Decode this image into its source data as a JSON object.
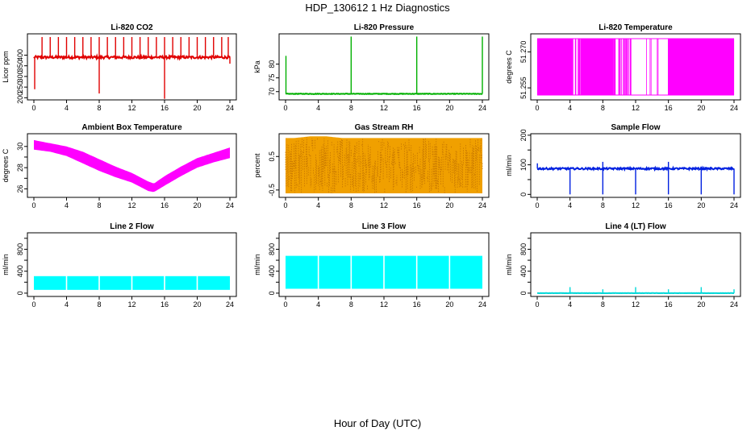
{
  "figure": {
    "title": "HDP_130612  1 Hz Diagnostics",
    "xlabel": "Hour of Day (UTC)"
  },
  "chart_data": [
    {
      "id": "co2",
      "type": "line",
      "title": "Li-820 CO2",
      "ylabel": "Licor ppm",
      "color": "#e00000",
      "xlim": [
        0,
        24
      ],
      "ylim": [
        190,
        500
      ],
      "xticks": [
        0,
        4,
        8,
        12,
        16,
        20,
        24
      ],
      "yticks": [
        200,
        250,
        300,
        350,
        400
      ],
      "pattern": "baseline_spikes",
      "baseline": 390,
      "noise": 6,
      "spikes": [
        [
          0.1,
          240
        ],
        [
          1.0,
          485
        ],
        [
          2.0,
          485
        ],
        [
          3.0,
          485
        ],
        [
          4.0,
          485
        ],
        [
          5.0,
          485
        ],
        [
          6.0,
          485
        ],
        [
          7.0,
          485
        ],
        [
          8.0,
          485
        ],
        [
          9.0,
          485
        ],
        [
          10.0,
          485
        ],
        [
          11.0,
          485
        ],
        [
          12.0,
          485
        ],
        [
          13.0,
          485
        ],
        [
          14.0,
          485
        ],
        [
          15.0,
          485
        ],
        [
          16.0,
          485
        ],
        [
          17.0,
          485
        ],
        [
          18.0,
          485
        ],
        [
          19.0,
          485
        ],
        [
          20.0,
          485
        ],
        [
          21.0,
          485
        ],
        [
          22.0,
          485
        ],
        [
          23.0,
          485
        ],
        [
          23.8,
          485
        ],
        [
          8.0,
          220
        ],
        [
          16.0,
          195
        ],
        [
          24.0,
          360
        ]
      ]
    },
    {
      "id": "pressure",
      "type": "line",
      "title": "Li-820 Pressure",
      "ylabel": "kPa",
      "color": "#00b000",
      "xlim": [
        0,
        24
      ],
      "ylim": [
        67,
        91
      ],
      "xticks": [
        0,
        4,
        8,
        12,
        16,
        20,
        24
      ],
      "yticks": [
        70,
        75,
        80
      ],
      "pattern": "baseline_spikes",
      "baseline": 69.2,
      "noise": 0.1,
      "spikes": [
        [
          0.05,
          83
        ],
        [
          8.0,
          90
        ],
        [
          16.0,
          90
        ],
        [
          24.0,
          90
        ]
      ]
    },
    {
      "id": "temp820",
      "type": "line",
      "title": "Li-820 Temperature",
      "ylabel": "degrees C",
      "color": "#ff00ff",
      "xlim": [
        0,
        24
      ],
      "ylim": [
        51.25,
        51.2775
      ],
      "xticks": [
        0,
        4,
        8,
        12,
        16,
        20,
        24
      ],
      "yticks": [
        51.255,
        51.27
      ],
      "ytick_labels": [
        "51.255",
        "51.270"
      ],
      "pattern": "two_level_toggle",
      "levels": [
        51.252,
        51.2755
      ]
    },
    {
      "id": "ambient",
      "type": "area",
      "title": "Ambient Box Temperature",
      "ylabel": "degrees C",
      "color": "#ff00ff",
      "xlim": [
        0,
        24
      ],
      "ylim": [
        25.2,
        31.2
      ],
      "xticks": [
        0,
        4,
        8,
        12,
        16,
        20,
        24
      ],
      "yticks": [
        26,
        27,
        28,
        29,
        30
      ],
      "ytick_labels": [
        "26",
        "",
        "28",
        "",
        "30"
      ],
      "pattern": "band",
      "x": [
        0,
        2,
        4,
        6,
        8,
        10,
        12,
        13,
        14,
        14.7,
        16,
        18,
        20,
        22,
        24
      ],
      "lower": [
        29.7,
        29.5,
        29.1,
        28.4,
        27.7,
        27.1,
        26.6,
        26.2,
        25.8,
        25.7,
        26.3,
        27.2,
        28.0,
        28.5,
        28.9
      ],
      "upper": [
        30.6,
        30.3,
        30.0,
        29.5,
        28.8,
        28.1,
        27.5,
        27.1,
        26.7,
        26.5,
        27.2,
        28.1,
        28.9,
        29.4,
        29.9
      ]
    },
    {
      "id": "rh",
      "type": "area",
      "title": "Gas Stream RH",
      "ylabel": "percent",
      "color": "#f0a000",
      "edge_color": "#c07000",
      "xlim": [
        0,
        24
      ],
      "ylim": [
        -0.72,
        1.18
      ],
      "xticks": [
        0,
        4,
        8,
        12,
        16,
        20,
        24
      ],
      "yticks": [
        -0.5,
        0.5
      ],
      "ytick_labels": [
        "-0.5",
        "0.5"
      ],
      "pattern": "band",
      "x": [
        0,
        1,
        3,
        5,
        7,
        9,
        11,
        13,
        15,
        17,
        19,
        21,
        23,
        24
      ],
      "lower": [
        -0.6,
        -0.6,
        -0.6,
        -0.6,
        -0.6,
        -0.6,
        -0.6,
        -0.6,
        -0.6,
        -0.6,
        -0.6,
        -0.6,
        -0.6,
        -0.6
      ],
      "upper": [
        1.05,
        1.05,
        1.1,
        1.1,
        1.05,
        1.05,
        1.05,
        1.05,
        1.05,
        1.05,
        1.05,
        1.05,
        1.05,
        1.05
      ]
    },
    {
      "id": "sampleflow",
      "type": "line",
      "title": "Sample Flow",
      "ylabel": "ml/min",
      "color": "#0020e0",
      "xlim": [
        0,
        24
      ],
      "ylim": [
        -10,
        205
      ],
      "xticks": [
        0,
        4,
        8,
        12,
        16,
        20,
        24
      ],
      "yticks": [
        0,
        50,
        100,
        150,
        200
      ],
      "ytick_labels": [
        "0",
        "",
        "100",
        "",
        "200"
      ],
      "pattern": "baseline_spikes",
      "baseline": 87,
      "noise": 3,
      "spikes": [
        [
          0.02,
          105
        ],
        [
          4.0,
          0
        ],
        [
          8.0,
          0
        ],
        [
          8.0,
          110
        ],
        [
          12.0,
          0
        ],
        [
          16.0,
          0
        ],
        [
          16.0,
          110
        ],
        [
          20.0,
          0
        ],
        [
          24.0,
          0
        ]
      ]
    },
    {
      "id": "line2",
      "type": "area",
      "title": "Line 2 Flow",
      "ylabel": "ml/min",
      "color": "#00ffff",
      "xlim": [
        0,
        24
      ],
      "ylim": [
        -60,
        1100
      ],
      "xticks": [
        0,
        4,
        8,
        12,
        16,
        20,
        24
      ],
      "yticks": [
        0,
        200,
        400,
        600,
        800,
        1000
      ],
      "ytick_labels": [
        "0",
        "",
        "400",
        "",
        "800",
        ""
      ],
      "pattern": "band_gaps",
      "lower": 60,
      "upper": 310,
      "gaps": [
        4,
        8,
        12,
        16,
        20
      ]
    },
    {
      "id": "line3",
      "type": "area",
      "title": "Line 3 Flow",
      "ylabel": "ml/min",
      "color": "#00ffff",
      "xlim": [
        0,
        24
      ],
      "ylim": [
        -60,
        1100
      ],
      "xticks": [
        0,
        4,
        8,
        12,
        16,
        20,
        24
      ],
      "yticks": [
        0,
        200,
        400,
        600,
        800,
        1000
      ],
      "ytick_labels": [
        "0",
        "",
        "400",
        "",
        "800",
        ""
      ],
      "pattern": "band_gaps",
      "lower": 80,
      "upper": 680,
      "gaps": [
        4,
        8,
        12,
        16,
        20
      ]
    },
    {
      "id": "line4",
      "type": "line",
      "title": "Line 4 (LT) Flow",
      "ylabel": "ml/min",
      "color": "#00d8d8",
      "xlim": [
        0,
        24
      ],
      "ylim": [
        -60,
        1100
      ],
      "xticks": [
        0,
        4,
        8,
        12,
        16,
        20,
        24
      ],
      "yticks": [
        0,
        200,
        400,
        600,
        800,
        1000
      ],
      "ytick_labels": [
        "0",
        "",
        "400",
        "",
        "800",
        ""
      ],
      "pattern": "baseline_spikes",
      "baseline": 0,
      "noise": 2,
      "spikes": [
        [
          4.0,
          110
        ],
        [
          8.0,
          70
        ],
        [
          12.0,
          110
        ],
        [
          16.0,
          70
        ],
        [
          20.0,
          110
        ],
        [
          24.0,
          70
        ]
      ]
    }
  ]
}
